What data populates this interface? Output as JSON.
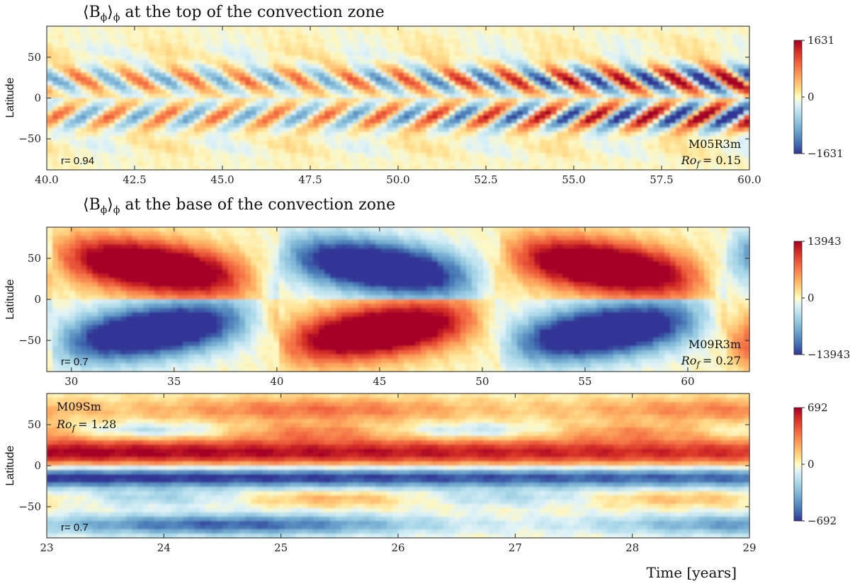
{
  "figure": {
    "xlabel": "Time [years]"
  },
  "chart_data": [
    {
      "type": "heatmap",
      "title": "⟨B_φ⟩_φ at the top of the convection zone",
      "title_parts": {
        "prefix": "⟨B",
        "sub1": "ϕ",
        "mid": "⟩",
        "sub2": "ϕ",
        "suffix": " at the top of the convection zone"
      },
      "xlabel": "",
      "ylabel": "Latitude",
      "xlim": [
        40,
        60
      ],
      "ylim": [
        -88,
        88
      ],
      "xticks": [
        40.0,
        42.5,
        45.0,
        47.5,
        50.0,
        52.5,
        55.0,
        57.5,
        60.0
      ],
      "xtick_labels": [
        "40.0",
        "42.5",
        "45.0",
        "47.5",
        "50.0",
        "52.5",
        "55.0",
        "57.5",
        "60.0"
      ],
      "yticks": [
        -50,
        0,
        50
      ],
      "ytick_labels": [
        "−50",
        "0",
        "50"
      ],
      "colorbar": {
        "min": -1631,
        "max": 1631,
        "tick_labels": [
          "1631",
          "0",
          "−1631"
        ],
        "colormap": "RdYlBu_r"
      },
      "model": "M05R3m",
      "rossby_label": "Ro",
      "rossby_sub": "f",
      "rossby_value": "= 0.15",
      "correlation": "r= 0.94",
      "pattern": "wings"
    },
    {
      "type": "heatmap",
      "title": "⟨B_φ⟩_φ at the base of the convection zone",
      "title_parts": {
        "prefix": "⟨B",
        "sub1": "ϕ",
        "mid": "⟩",
        "sub2": "ϕ",
        "suffix": " at the base of the convection zone"
      },
      "xlabel": "",
      "ylabel": "Latitude",
      "xlim": [
        28.8,
        63
      ],
      "ylim": [
        -88,
        88
      ],
      "xticks": [
        30,
        35,
        40,
        45,
        50,
        55,
        60
      ],
      "xtick_labels": [
        "30",
        "35",
        "40",
        "45",
        "50",
        "55",
        "60"
      ],
      "yticks": [
        -50,
        0,
        50
      ],
      "ytick_labels": [
        "−50",
        "0",
        "50"
      ],
      "colorbar": {
        "min": -13943,
        "max": 13943,
        "tick_labels": [
          "13943",
          "0",
          "−13943"
        ],
        "colormap": "RdYlBu_r"
      },
      "model": "M09R3m",
      "rossby_label": "Ro",
      "rossby_sub": "f",
      "rossby_value": "= 0.27",
      "correlation": "r= 0.7",
      "pattern": "cycles"
    },
    {
      "type": "heatmap",
      "title": "",
      "xlabel": "Time [years]",
      "ylabel": "Latitude",
      "xlim": [
        23,
        29
      ],
      "ylim": [
        -88,
        88
      ],
      "xticks": [
        23,
        24,
        25,
        26,
        27,
        28,
        29
      ],
      "xtick_labels": [
        "23",
        "24",
        "25",
        "26",
        "27",
        "28",
        "29"
      ],
      "yticks": [
        -50,
        0,
        50
      ],
      "ytick_labels": [
        "−50",
        "0",
        "50"
      ],
      "colorbar": {
        "min": -692,
        "max": 692,
        "tick_labels": [
          "692",
          "0",
          "−692"
        ],
        "colormap": "RdYlBu_r"
      },
      "model": "M09Sm",
      "rossby_label": "Ro",
      "rossby_sub": "f",
      "rossby_value": "= 1.28",
      "correlation": "r= 0.7",
      "pattern": "bands"
    }
  ]
}
